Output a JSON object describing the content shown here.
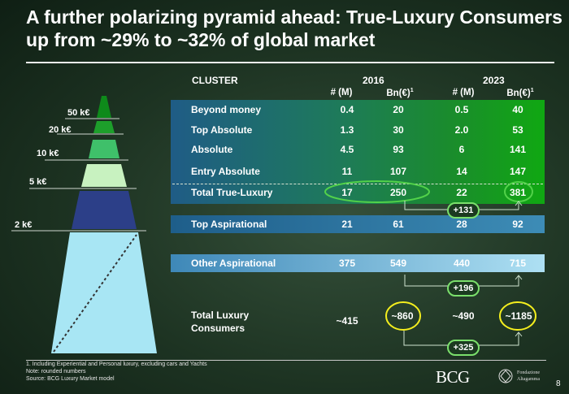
{
  "title": "A further polarizing pyramid ahead: True-Luxury Consumers up from ~29% to ~32% of global market",
  "table": {
    "cluster_header": "CLUSTER",
    "year_2016": "2016",
    "year_2023": "2023",
    "col_m_2016": "# (M)",
    "col_bn_2016": "Bn(€)",
    "col_m_2023": "# (M)",
    "col_bn_2023": "Bn(€)",
    "footnote_ref": "1",
    "rows": [
      {
        "label": "Beyond money",
        "m2016": "0.4",
        "bn2016": "20",
        "m2023": "0.5",
        "bn2023": "40"
      },
      {
        "label": "Top Absolute",
        "m2016": "1.3",
        "bn2016": "30",
        "m2023": "2.0",
        "bn2023": "53"
      },
      {
        "label": "Absolute",
        "m2016": "4.5",
        "bn2016": "93",
        "m2023": "6",
        "bn2023": "141"
      },
      {
        "label": "Entry Absolute",
        "m2016": "11",
        "bn2016": "107",
        "m2023": "14",
        "bn2023": "147"
      },
      {
        "label": "Total True-Luxury",
        "m2016": "17",
        "bn2016": "250",
        "m2023": "22",
        "bn2023": "381"
      },
      {
        "label": "Top Aspirational",
        "m2016": "21",
        "bn2016": "61",
        "m2023": "28",
        "bn2023": "92"
      },
      {
        "label": "Other Aspirational",
        "m2016": "375",
        "bn2016": "549",
        "m2023": "440",
        "bn2023": "715"
      }
    ],
    "total_label": "Total Luxury Consumers",
    "total_m2016": "~415",
    "total_bn2016": "~860",
    "total_m2023": "~490",
    "total_bn2023": "~1185"
  },
  "growth": {
    "true_luxury": "+131",
    "other_aspirational": "+196",
    "total": "+325"
  },
  "pyramid_tiers": [
    "50 k€",
    "20 k€",
    "10 k€",
    "5 k€",
    "2 k€"
  ],
  "footer": {
    "line1": "1. Including Experiential and Personal luxury, excluding cars and Yachts",
    "line2": "Note: rounded numbers",
    "line3": "Source: BCG Luxury Market model"
  },
  "logo": "BCG",
  "partner_logo": {
    "line1": "Fondazione",
    "line2": "Altagamma"
  },
  "page_number": "8",
  "colors": {
    "highlight_yellow": "#f4ee1e",
    "highlight_green": "#52d24a"
  }
}
